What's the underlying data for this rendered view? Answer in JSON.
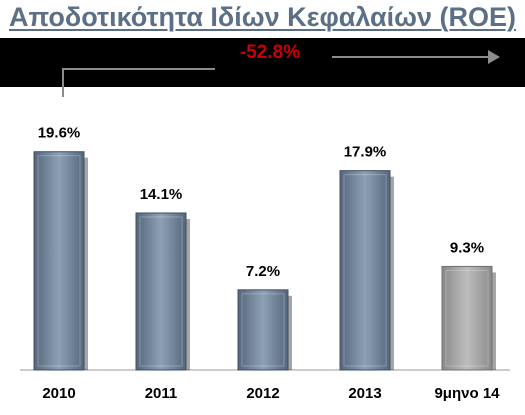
{
  "chart_data": {
    "type": "bar",
    "title": "Αποδοτικότητα Ιδίων Κεφαλαίων (ROE)",
    "categories": [
      "2010",
      "2011",
      "2012",
      "2013",
      "9μηνο 14"
    ],
    "values": [
      19.6,
      14.1,
      7.2,
      17.9,
      9.3
    ],
    "data_labels": [
      "19.6%",
      "14.1%",
      "7.2%",
      "17.9%",
      "9.3%"
    ],
    "annotation": "-52.8%",
    "unit": "%",
    "ylim": [
      0,
      22
    ],
    "grid": false,
    "legend": "none",
    "xlabel": "",
    "ylabel": ""
  },
  "colors": {
    "title": "#5b6f86",
    "bar": "#7b8ea4",
    "bar_highlight": "#a8a8a8",
    "band": "#000000",
    "annotation": "#cc0000",
    "arrow": "#8c8c8c"
  }
}
